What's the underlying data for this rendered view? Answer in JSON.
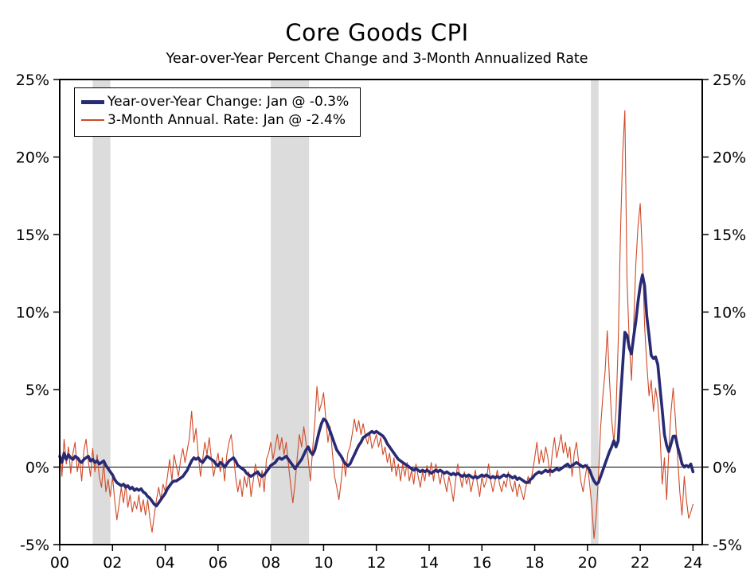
{
  "chart_data": {
    "type": "line",
    "title": "Core Goods CPI",
    "subtitle": "Year-over-Year Percent Change and 3-Month Annualized Rate",
    "xlim": [
      2000,
      2024.35
    ],
    "ylim": [
      -5,
      25
    ],
    "x_start": 2000,
    "x_step_months": 1,
    "grid": false,
    "legend_position": "top-left",
    "recession_color": "#dcdcdc",
    "recessions": [
      [
        2001.25,
        2001.92
      ],
      [
        2008.0,
        2009.45
      ],
      [
        2020.13,
        2020.42
      ]
    ],
    "y_ticks": [
      {
        "v": -5,
        "label": "-5%"
      },
      {
        "v": 0,
        "label": "0%"
      },
      {
        "v": 5,
        "label": "5%"
      },
      {
        "v": 10,
        "label": "10%"
      },
      {
        "v": 15,
        "label": "15%"
      },
      {
        "v": 20,
        "label": "20%"
      },
      {
        "v": 25,
        "label": "25%"
      }
    ],
    "x_ticks": [
      {
        "v": 2000,
        "label": "00"
      },
      {
        "v": 2002,
        "label": "02"
      },
      {
        "v": 2004,
        "label": "04"
      },
      {
        "v": 2006,
        "label": "06"
      },
      {
        "v": 2008,
        "label": "08"
      },
      {
        "v": 2010,
        "label": "10"
      },
      {
        "v": 2012,
        "label": "12"
      },
      {
        "v": 2014,
        "label": "14"
      },
      {
        "v": 2016,
        "label": "16"
      },
      {
        "v": 2018,
        "label": "18"
      },
      {
        "v": 2020,
        "label": "20"
      },
      {
        "v": 2022,
        "label": "22"
      },
      {
        "v": 2024,
        "label": "24"
      }
    ],
    "series": [
      {
        "name": "3-Month Annual. Rate",
        "legend_label": "3-Month Annual. Rate: Jan @ -2.4%",
        "color": "#cf4a28",
        "stroke_width": 1.1,
        "values": [
          1.5,
          -0.6,
          1.8,
          0.2,
          1.3,
          -0.4,
          0.9,
          1.6,
          -0.3,
          0.6,
          -0.9,
          1.1,
          1.8,
          0.4,
          -0.6,
          1.2,
          -0.3,
          0.8,
          -0.6,
          -1.3,
          0.3,
          -1.6,
          -0.8,
          -1.9,
          -0.6,
          -2.1,
          -3.4,
          -2.4,
          -1.3,
          -2.3,
          -1.1,
          -2.6,
          -1.8,
          -2.9,
          -2.2,
          -2.7,
          -1.8,
          -2.9,
          -2.1,
          -3.1,
          -2.1,
          -3.3,
          -4.2,
          -3.1,
          -2.1,
          -1.3,
          -2.1,
          -1.1,
          -1.6,
          -0.6,
          0.5,
          -0.9,
          0.8,
          0.1,
          -0.6,
          0.5,
          1.2,
          0.3,
          1.1,
          1.9,
          3.6,
          1.6,
          2.5,
          0.8,
          -0.6,
          0.5,
          1.6,
          0.8,
          1.9,
          0.5,
          -0.6,
          0.2,
          0.9,
          -0.3,
          0.6,
          -0.9,
          0.8,
          1.6,
          2.1,
          0.8,
          -0.6,
          -1.6,
          -0.8,
          -1.9,
          -0.6,
          -1.3,
          -0.3,
          -1.9,
          -0.9,
          0.2,
          -0.6,
          -1.3,
          -0.2,
          -1.6,
          0.5,
          0.9,
          1.6,
          0.5,
          1.3,
          2.1,
          1.1,
          1.9,
          0.8,
          1.6,
          0.2,
          -1.1,
          -2.3,
          -1.1,
          0.6,
          2.1,
          1.3,
          2.6,
          1.6,
          0.5,
          -0.9,
          1.1,
          2.9,
          5.2,
          3.6,
          4.1,
          4.8,
          3.1,
          1.6,
          2.6,
          0.9,
          -0.6,
          -1.3,
          -2.1,
          -0.9,
          0.6,
          -0.6,
          0.9,
          1.3,
          2.1,
          3.1,
          2.3,
          3.0,
          2.1,
          2.8,
          2.0,
          1.5,
          2.2,
          1.2,
          1.6,
          2.1,
          1.3,
          1.9,
          0.8,
          1.3,
          0.3,
          0.9,
          -0.3,
          0.6,
          -0.6,
          0.2,
          -0.9,
          0.2,
          -0.6,
          0.3,
          -0.9,
          -0.2,
          -1.1,
          0.2,
          -0.6,
          -1.3,
          -0.3,
          -0.9,
          0.1,
          -0.6,
          0.3,
          -0.9,
          0.2,
          -0.3,
          -1.1,
          -0.2,
          -0.9,
          -1.6,
          -0.6,
          -1.3,
          -2.2,
          -0.9,
          0.2,
          -0.6,
          -1.3,
          -0.3,
          -1.1,
          -0.6,
          -1.6,
          -0.9,
          -0.2,
          -1.1,
          -1.9,
          -0.6,
          -1.3,
          -0.9,
          0.2,
          -0.9,
          -1.6,
          -0.9,
          -0.2,
          -1.1,
          -1.6,
          -0.9,
          -1.3,
          -0.3,
          -1.1,
          -1.6,
          -0.9,
          -1.9,
          -1.1,
          -1.6,
          -2.1,
          -1.3,
          -0.6,
          -1.1,
          -0.3,
          0.6,
          1.6,
          0.2,
          1.1,
          0.3,
          1.3,
          0.6,
          -0.6,
          0.9,
          1.9,
          0.6,
          1.3,
          2.1,
          0.9,
          1.6,
          0.6,
          1.3,
          -0.6,
          0.9,
          1.6,
          0.3,
          -0.9,
          -1.6,
          -0.6,
          0.2,
          -1.1,
          -2.6,
          -4.6,
          -3.1,
          -0.6,
          2.6,
          4.6,
          6.1,
          8.8,
          5.6,
          3.1,
          1.6,
          3.6,
          8.1,
          15.1,
          20.1,
          23.0,
          12.1,
          8.1,
          5.6,
          9.1,
          13.1,
          15.6,
          17.0,
          13.6,
          9.1,
          6.6,
          4.6,
          5.6,
          3.6,
          5.1,
          4.1,
          2.1,
          -1.1,
          0.6,
          -2.1,
          1.1,
          3.6,
          5.1,
          3.1,
          0.6,
          -1.6,
          -3.1,
          -0.6,
          -2.1,
          -3.3,
          -2.9,
          -2.4
        ]
      },
      {
        "name": "Year-over-Year Change",
        "legend_label": "Year-over-Year Change: Jan @ -0.3%",
        "color": "#282a74",
        "stroke_width": 3.6,
        "values": [
          0.7,
          0.3,
          0.9,
          0.5,
          0.8,
          0.6,
          0.5,
          0.7,
          0.6,
          0.4,
          0.3,
          0.5,
          0.6,
          0.7,
          0.4,
          0.5,
          0.3,
          0.4,
          0.2,
          0.3,
          0.4,
          0.1,
          -0.1,
          -0.3,
          -0.5,
          -0.8,
          -1.0,
          -1.1,
          -1.2,
          -1.1,
          -1.3,
          -1.2,
          -1.4,
          -1.3,
          -1.5,
          -1.4,
          -1.5,
          -1.4,
          -1.6,
          -1.7,
          -1.9,
          -2.0,
          -2.2,
          -2.4,
          -2.5,
          -2.3,
          -2.1,
          -1.9,
          -1.7,
          -1.4,
          -1.2,
          -1.0,
          -0.9,
          -0.9,
          -0.8,
          -0.7,
          -0.6,
          -0.4,
          -0.2,
          0.1,
          0.4,
          0.6,
          0.5,
          0.6,
          0.4,
          0.3,
          0.5,
          0.7,
          0.6,
          0.5,
          0.4,
          0.2,
          0.1,
          0.3,
          0.2,
          0.0,
          0.2,
          0.4,
          0.5,
          0.6,
          0.4,
          0.1,
          0.0,
          -0.1,
          -0.2,
          -0.4,
          -0.5,
          -0.6,
          -0.5,
          -0.4,
          -0.3,
          -0.5,
          -0.6,
          -0.5,
          -0.3,
          -0.1,
          0.1,
          0.2,
          0.3,
          0.5,
          0.6,
          0.5,
          0.6,
          0.7,
          0.5,
          0.3,
          0.1,
          -0.1,
          0.1,
          0.3,
          0.5,
          0.8,
          1.1,
          1.3,
          1.0,
          0.8,
          1.1,
          1.7,
          2.3,
          2.8,
          3.1,
          3.0,
          2.7,
          2.3,
          1.9,
          1.5,
          1.1,
          0.9,
          0.7,
          0.4,
          0.2,
          0.1,
          0.2,
          0.5,
          0.8,
          1.1,
          1.4,
          1.6,
          1.9,
          2.0,
          2.1,
          2.2,
          2.3,
          2.2,
          2.3,
          2.2,
          2.1,
          2.0,
          1.8,
          1.5,
          1.3,
          1.1,
          0.9,
          0.7,
          0.5,
          0.4,
          0.3,
          0.2,
          0.1,
          0.0,
          -0.1,
          -0.2,
          -0.1,
          -0.2,
          -0.3,
          -0.2,
          -0.3,
          -0.2,
          -0.3,
          -0.4,
          -0.3,
          -0.2,
          -0.3,
          -0.2,
          -0.3,
          -0.4,
          -0.3,
          -0.4,
          -0.5,
          -0.4,
          -0.5,
          -0.4,
          -0.5,
          -0.6,
          -0.5,
          -0.6,
          -0.5,
          -0.6,
          -0.7,
          -0.6,
          -0.7,
          -0.6,
          -0.5,
          -0.6,
          -0.5,
          -0.6,
          -0.7,
          -0.6,
          -0.7,
          -0.6,
          -0.7,
          -0.6,
          -0.5,
          -0.6,
          -0.5,
          -0.6,
          -0.7,
          -0.6,
          -0.8,
          -0.7,
          -0.8,
          -0.9,
          -1.0,
          -1.0,
          -0.8,
          -0.7,
          -0.5,
          -0.4,
          -0.3,
          -0.4,
          -0.3,
          -0.2,
          -0.3,
          -0.2,
          -0.3,
          -0.2,
          -0.1,
          -0.2,
          -0.1,
          0.0,
          0.1,
          0.2,
          0.0,
          0.1,
          0.2,
          0.3,
          0.2,
          0.1,
          0.0,
          0.1,
          0.0,
          -0.2,
          -0.6,
          -0.9,
          -1.1,
          -1.0,
          -0.6,
          -0.2,
          0.2,
          0.6,
          1.0,
          1.3,
          1.7,
          1.3,
          1.7,
          4.4,
          6.5,
          8.7,
          8.5,
          7.7,
          7.3,
          8.4,
          9.4,
          10.7,
          11.7,
          12.4,
          11.7,
          9.7,
          8.5,
          7.2,
          7.0,
          7.1,
          6.6,
          5.1,
          3.7,
          2.1,
          1.4,
          1.0,
          1.5,
          2.0,
          2.0,
          1.3,
          0.8,
          0.2,
          0.0,
          0.1,
          0.0,
          0.2,
          -0.3
        ]
      }
    ]
  }
}
